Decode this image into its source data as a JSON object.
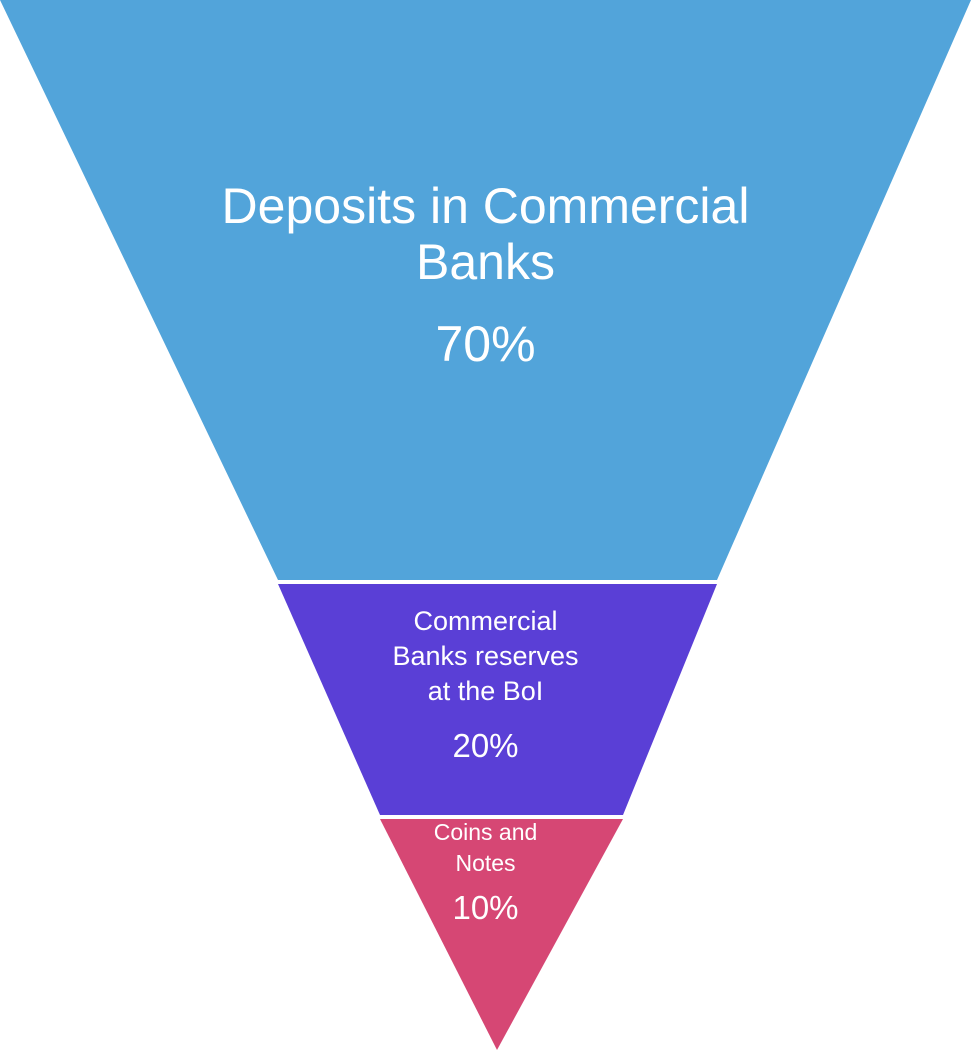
{
  "layers": [
    {
      "label_lines": [
        "Deposits in Commercial",
        "Banks"
      ],
      "percent": "70%",
      "color": "#52a4da"
    },
    {
      "label_lines": [
        "Commercial",
        "Banks reserves",
        "at the BoI"
      ],
      "percent": "20%",
      "color": "#5a3fd6"
    },
    {
      "label_lines": [
        "Coins and",
        "Notes"
      ],
      "percent": "10%",
      "color": "#d64774"
    }
  ]
}
